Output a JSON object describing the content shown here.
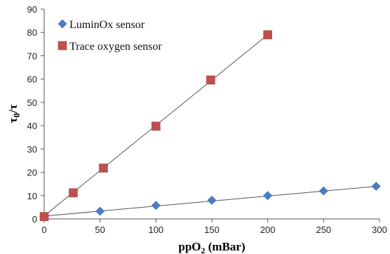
{
  "chart_data": {
    "type": "scatter",
    "xlabel": {
      "main": "ppO",
      "sub": "2",
      "unit": " (mBar)"
    },
    "ylabel": {
      "main": "τ",
      "sub": "0",
      "rest": "/τ"
    },
    "xlim": [
      0,
      300
    ],
    "ylim": [
      0,
      90
    ],
    "x_ticks": [
      0,
      50,
      100,
      150,
      200,
      250,
      300
    ],
    "y_ticks": [
      0,
      10,
      20,
      30,
      40,
      50,
      60,
      70,
      80,
      90
    ],
    "grid": false,
    "legend_position": "top-left",
    "series": [
      {
        "name": "LuminOx sensor",
        "marker": "diamond",
        "color": "#4a7ec4",
        "x": [
          0,
          50,
          100,
          150,
          200,
          250,
          297
        ],
        "y": [
          1,
          3.3,
          5.8,
          8,
          10,
          12,
          14
        ],
        "fit": {
          "x": [
            0,
            300
          ],
          "y": [
            1.2,
            14.1
          ]
        }
      },
      {
        "name": "Trace oxygen sensor",
        "marker": "square",
        "color": "#c0504d",
        "x": [
          0,
          26,
          53,
          100,
          149,
          200
        ],
        "y": [
          1,
          11.2,
          21.8,
          39.8,
          59.6,
          79
        ],
        "fit": {
          "x": [
            0,
            200
          ],
          "y": [
            1.3,
            79
          ]
        }
      }
    ]
  }
}
